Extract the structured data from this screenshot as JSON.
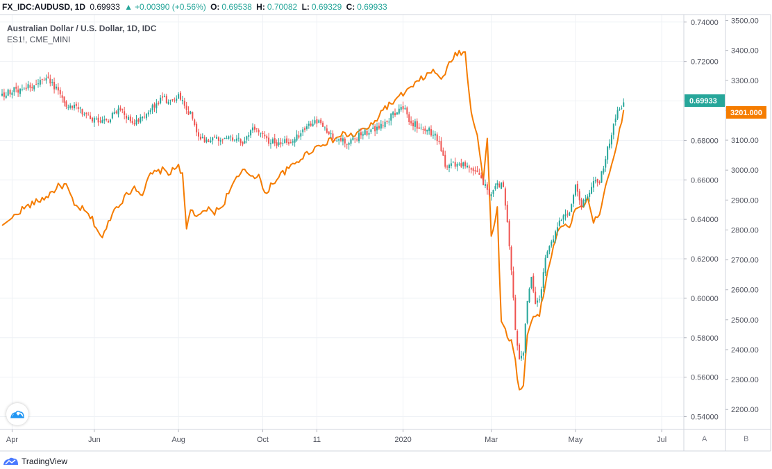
{
  "header": {
    "symbol": "FX_IDC:AUDUSD, 1D",
    "last": "0.69933",
    "arrow": "▲",
    "change": "+0.00390 (+0.56%)",
    "o_label": "O:",
    "o_value": "0.69538",
    "h_label": "H:",
    "h_value": "0.70082",
    "l_label": "L:",
    "l_value": "0.69329",
    "c_label": "C:",
    "c_value": "0.69933"
  },
  "footer": {
    "brand": "TradingView"
  },
  "scale_buttons": [
    "A",
    "B"
  ],
  "colors": {
    "up": "#26a69a",
    "down": "#ef5350",
    "overlay": "#f57c00",
    "grid": "#eef1f5"
  },
  "chart_data": {
    "type": "candlestick",
    "title": "Australian Dollar / U.S. Dollar, 1D, IDC",
    "subtitle": "ES1!, CME_MINI",
    "x_ticks": [
      {
        "label": "Apr",
        "index": 5
      },
      {
        "label": "Jun",
        "index": 46
      },
      {
        "label": "Aug",
        "index": 88
      },
      {
        "label": "Oct",
        "index": 130
      },
      {
        "label": "11",
        "index": 157
      },
      {
        "label": "2020",
        "index": 200
      },
      {
        "label": "Mar",
        "index": 244
      },
      {
        "label": "May",
        "index": 286
      },
      {
        "label": "Jul",
        "index": 329
      }
    ],
    "x_count": 340,
    "y_left_axis": {
      "label": "AUDUSD",
      "ylim": [
        0.5335,
        0.7438
      ],
      "ticks": [
        0.74,
        0.72,
        0.7,
        0.68,
        0.66,
        0.64,
        0.62,
        0.6,
        0.58,
        0.56,
        0.54
      ]
    },
    "y_right_axis": {
      "label": "ES1!",
      "ylim": [
        2133.3,
        3519.8
      ],
      "ticks": [
        3500,
        3400,
        3300,
        3200,
        3100,
        3000,
        2900,
        2800,
        2700,
        2600,
        2500,
        2400,
        2300,
        2200
      ]
    },
    "last_value_labels": {
      "primary": "0.69933",
      "secondary": "3201.000"
    },
    "series": [
      {
        "name": "AUDUSD",
        "kind": "candles",
        "anchors": [
          [
            0,
            0.7035
          ],
          [
            8,
            0.706
          ],
          [
            16,
            0.708
          ],
          [
            22,
            0.711
          ],
          [
            28,
            0.706
          ],
          [
            32,
            0.698
          ],
          [
            38,
            0.696
          ],
          [
            46,
            0.69
          ],
          [
            53,
            0.69
          ],
          [
            57,
            0.695
          ],
          [
            60,
            0.694
          ],
          [
            66,
            0.688
          ],
          [
            70,
            0.691
          ],
          [
            74,
            0.695
          ],
          [
            80,
            0.702
          ],
          [
            84,
            0.699
          ],
          [
            88,
            0.703
          ],
          [
            94,
            0.693
          ],
          [
            99,
            0.681
          ],
          [
            106,
            0.68
          ],
          [
            113,
            0.681
          ],
          [
            120,
            0.679
          ],
          [
            124,
            0.686
          ],
          [
            128,
            0.684
          ],
          [
            133,
            0.679
          ],
          [
            138,
            0.679
          ],
          [
            143,
            0.679
          ],
          [
            148,
            0.683
          ],
          [
            152,
            0.688
          ],
          [
            156,
            0.69
          ],
          [
            160,
            0.688
          ],
          [
            165,
            0.682
          ],
          [
            170,
            0.68
          ],
          [
            174,
            0.679
          ],
          [
            178,
            0.683
          ],
          [
            184,
            0.685
          ],
          [
            188,
            0.686
          ],
          [
            194,
            0.692
          ],
          [
            200,
            0.697
          ],
          [
            204,
            0.689
          ],
          [
            208,
            0.687
          ],
          [
            213,
            0.685
          ],
          [
            217,
            0.681
          ],
          [
            221,
            0.668
          ],
          [
            228,
            0.668
          ],
          [
            232,
            0.667
          ],
          [
            236,
            0.664
          ],
          [
            240,
            0.659
          ],
          [
            243,
            0.651
          ],
          [
            246,
            0.657
          ],
          [
            250,
            0.658
          ],
          [
            253,
            0.627
          ],
          [
            256,
            0.585
          ],
          [
            258,
            0.568
          ],
          [
            260,
            0.573
          ],
          [
            262,
            0.6
          ],
          [
            264,
            0.612
          ],
          [
            266,
            0.598
          ],
          [
            268,
            0.599
          ],
          [
            271,
            0.62
          ],
          [
            275,
            0.631
          ],
          [
            279,
            0.64
          ],
          [
            283,
            0.643
          ],
          [
            286,
            0.656
          ],
          [
            289,
            0.647
          ],
          [
            292,
            0.651
          ],
          [
            295,
            0.659
          ],
          [
            298,
            0.66
          ],
          [
            301,
            0.671
          ],
          [
            304,
            0.684
          ],
          [
            307,
            0.694
          ],
          [
            310,
            0.6993
          ]
        ],
        "colors": {
          "up": "#26a69a",
          "down": "#ef5350"
        }
      },
      {
        "name": "ES1!",
        "kind": "line",
        "anchors": [
          [
            0,
            2815
          ],
          [
            5,
            2840
          ],
          [
            10,
            2870
          ],
          [
            16,
            2890
          ],
          [
            22,
            2910
          ],
          [
            28,
            2945
          ],
          [
            32,
            2950
          ],
          [
            36,
            2880
          ],
          [
            40,
            2870
          ],
          [
            45,
            2835
          ],
          [
            50,
            2770
          ],
          [
            55,
            2860
          ],
          [
            60,
            2900
          ],
          [
            66,
            2945
          ],
          [
            70,
            2920
          ],
          [
            74,
            2985
          ],
          [
            80,
            3000
          ],
          [
            84,
            2990
          ],
          [
            88,
            3020
          ],
          [
            90,
            2980
          ],
          [
            92,
            2800
          ],
          [
            94,
            2870
          ],
          [
            98,
            2840
          ],
          [
            102,
            2870
          ],
          [
            106,
            2860
          ],
          [
            110,
            2880
          ],
          [
            113,
            2930
          ],
          [
            117,
            2970
          ],
          [
            121,
            3000
          ],
          [
            125,
            2980
          ],
          [
            128,
            2985
          ],
          [
            131,
            2915
          ],
          [
            134,
            2950
          ],
          [
            139,
            2985
          ],
          [
            144,
            3010
          ],
          [
            150,
            3045
          ],
          [
            155,
            3070
          ],
          [
            160,
            3090
          ],
          [
            165,
            3100
          ],
          [
            170,
            3120
          ],
          [
            175,
            3115
          ],
          [
            180,
            3135
          ],
          [
            185,
            3150
          ],
          [
            190,
            3205
          ],
          [
            196,
            3230
          ],
          [
            200,
            3255
          ],
          [
            205,
            3280
          ],
          [
            210,
            3310
          ],
          [
            215,
            3330
          ],
          [
            220,
            3305
          ],
          [
            224,
            3370
          ],
          [
            228,
            3395
          ],
          [
            231,
            3390
          ],
          [
            234,
            3195
          ],
          [
            237,
            3120
          ],
          [
            240,
            2965
          ],
          [
            242,
            3100
          ],
          [
            244,
            2780
          ],
          [
            247,
            2870
          ],
          [
            249,
            2490
          ],
          [
            252,
            2450
          ],
          [
            255,
            2410
          ],
          [
            258,
            2260
          ],
          [
            260,
            2280
          ],
          [
            262,
            2450
          ],
          [
            265,
            2520
          ],
          [
            268,
            2510
          ],
          [
            271,
            2620
          ],
          [
            275,
            2750
          ],
          [
            279,
            2820
          ],
          [
            283,
            2800
          ],
          [
            286,
            2880
          ],
          [
            289,
            2870
          ],
          [
            292,
            2910
          ],
          [
            295,
            2820
          ],
          [
            298,
            2860
          ],
          [
            301,
            2950
          ],
          [
            304,
            3020
          ],
          [
            307,
            3100
          ],
          [
            310,
            3201
          ]
        ],
        "color": "#f57c00"
      }
    ]
  }
}
